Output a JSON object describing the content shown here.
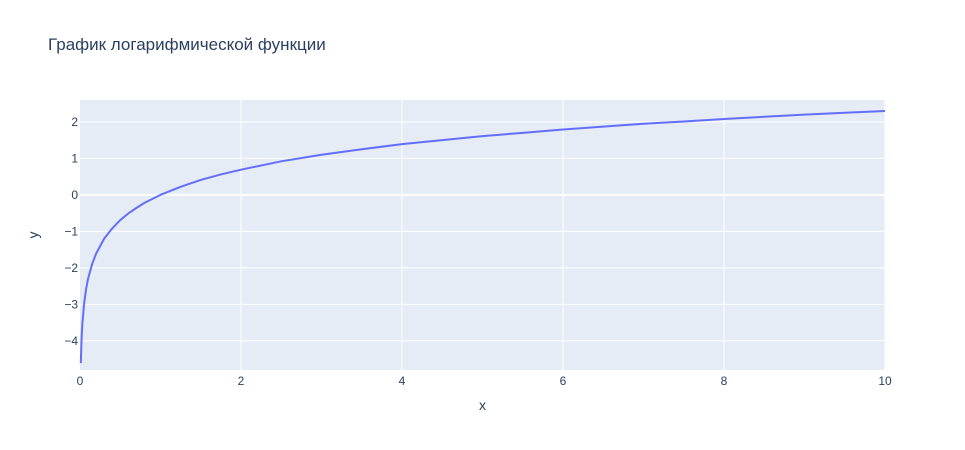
{
  "chart_data": {
    "type": "line",
    "title": "График логарифмической функции",
    "xlabel": "x",
    "ylabel": "y",
    "xlim": [
      0,
      10
    ],
    "ylim": [
      -4.8,
      2.6
    ],
    "x_ticks": [
      0,
      2,
      4,
      6,
      8,
      10
    ],
    "y_ticks": [
      -4,
      -3,
      -2,
      -1,
      0,
      1,
      2
    ],
    "x_tick_labels": [
      "0",
      "2",
      "4",
      "6",
      "8",
      "10"
    ],
    "y_tick_labels": [
      "−4",
      "−3",
      "−2",
      "−1",
      "0",
      "1",
      "2"
    ],
    "grid": true,
    "plot_background": "#E5ECF6",
    "series": [
      {
        "color": "#636EFA",
        "x": [
          0.01,
          0.02,
          0.03,
          0.05,
          0.075,
          0.1,
          0.15,
          0.2,
          0.3,
          0.4,
          0.5,
          0.6,
          0.7,
          0.8,
          0.9,
          1.0,
          1.25,
          1.5,
          1.75,
          2.0,
          2.5,
          3.0,
          3.5,
          4.0,
          4.5,
          5.0,
          5.5,
          6.0,
          6.5,
          7.0,
          7.5,
          8.0,
          8.5,
          9.0,
          9.5,
          10.0
        ],
        "y": [
          -4.61,
          -3.91,
          -3.51,
          -3.0,
          -2.59,
          -2.3,
          -1.9,
          -1.61,
          -1.2,
          -0.92,
          -0.69,
          -0.51,
          -0.36,
          -0.22,
          -0.11,
          0.0,
          0.22,
          0.41,
          0.56,
          0.69,
          0.92,
          1.1,
          1.25,
          1.39,
          1.5,
          1.61,
          1.7,
          1.79,
          1.87,
          1.95,
          2.01,
          2.08,
          2.14,
          2.2,
          2.25,
          2.3
        ]
      }
    ]
  }
}
